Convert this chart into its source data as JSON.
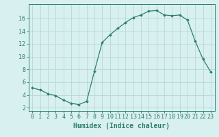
{
  "x": [
    0,
    1,
    2,
    3,
    4,
    5,
    6,
    7,
    8,
    9,
    10,
    11,
    12,
    13,
    14,
    15,
    16,
    17,
    18,
    19,
    20,
    21,
    22,
    23
  ],
  "y": [
    5.1,
    4.8,
    4.2,
    3.9,
    3.2,
    2.7,
    2.5,
    3.0,
    7.7,
    12.2,
    13.4,
    14.4,
    15.3,
    16.1,
    16.5,
    17.1,
    17.2,
    16.5,
    16.4,
    16.5,
    15.7,
    12.4,
    9.6,
    7.6
  ],
  "xlabel": "Humidex (Indice chaleur)",
  "line_color": "#2d7d6e",
  "marker_color": "#2d7d6e",
  "bg_color": "#d8f0f0",
  "grid_color": "#b8d8d8",
  "tick_color": "#2d7d6e",
  "xlim": [
    -0.5,
    23.5
  ],
  "ylim": [
    1.5,
    18.2
  ],
  "yticks": [
    2,
    4,
    6,
    8,
    10,
    12,
    14,
    16
  ],
  "xticks": [
    0,
    1,
    2,
    3,
    4,
    5,
    6,
    7,
    8,
    9,
    10,
    11,
    12,
    13,
    14,
    15,
    16,
    17,
    18,
    19,
    20,
    21,
    22,
    23
  ],
  "xlabel_fontsize": 7.0,
  "tick_fontsize": 6.0
}
